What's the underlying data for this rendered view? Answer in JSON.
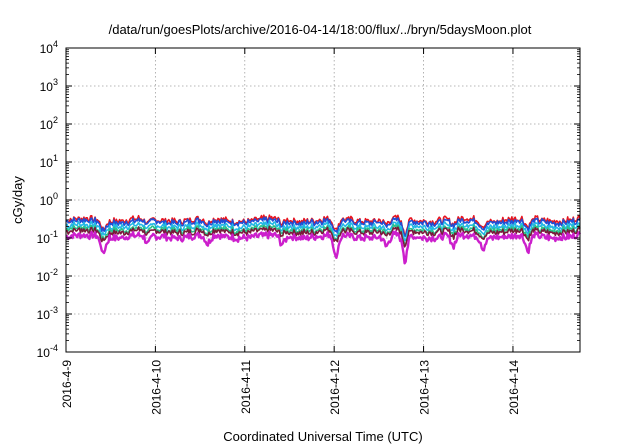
{
  "chart_data": {
    "type": "line",
    "title": "/data/run/goesPlots/archive/2016-04-14/18:00/flux/../bryn/5daysMoon.plot",
    "xlabel": "Coordinated Universal Time (UTC)",
    "ylabel": "cGy/day",
    "yscale": "log",
    "ylim": [
      0.0001,
      10000
    ],
    "xlim": [
      "2016-04-09T00:00",
      "2016-04-14T18:00"
    ],
    "grid": true,
    "x_tick_labels": [
      "2016-4-9",
      "2016-4-10",
      "2016-4-11",
      "2016-4-12",
      "2016-4-13",
      "2016-4-14"
    ],
    "x_ticks": [
      "2016-04-09T00:00",
      "2016-04-10T00:00",
      "2016-04-11T00:00",
      "2016-04-12T00:00",
      "2016-04-13T00:00",
      "2016-04-14T00:00"
    ],
    "y_ticks": [
      {
        "base": "10",
        "exp": "-4",
        "value": 0.0001
      },
      {
        "base": "10",
        "exp": "-3",
        "value": 0.001
      },
      {
        "base": "10",
        "exp": "-2",
        "value": 0.01
      },
      {
        "base": "10",
        "exp": "-1",
        "value": 0.1
      },
      {
        "base": "10",
        "exp": "0",
        "value": 1
      },
      {
        "base": "10",
        "exp": "1",
        "value": 10
      },
      {
        "base": "10",
        "exp": "2",
        "value": 100
      },
      {
        "base": "10",
        "exp": "3",
        "value": 1000
      },
      {
        "base": "10",
        "exp": "4",
        "value": 10000
      }
    ],
    "series": [
      {
        "color": "#e8141e",
        "base": 0.3
      },
      {
        "color": "#1f4fd6",
        "base": 0.27
      },
      {
        "color": "#22b8e6",
        "base": 0.21
      },
      {
        "color": "#29c38a",
        "base": 0.17
      },
      {
        "color": "#7a1a3a",
        "base": 0.15
      },
      {
        "color": "#cc1fcc",
        "base": 0.11
      }
    ],
    "dips": [
      {
        "t": "2016-04-09T10:00",
        "factor": 0.55
      },
      {
        "t": "2016-04-09T22:00",
        "factor": 0.75
      },
      {
        "t": "2016-04-10T14:00",
        "factor": 0.72
      },
      {
        "t": "2016-04-11T10:00",
        "factor": 0.75
      },
      {
        "t": "2016-04-12T00:30",
        "factor": 0.42
      },
      {
        "t": "2016-04-12T14:00",
        "factor": 0.7
      },
      {
        "t": "2016-04-12T19:00",
        "factor": 0.38
      },
      {
        "t": "2016-04-13T08:00",
        "factor": 0.7
      },
      {
        "t": "2016-04-13T16:00",
        "factor": 0.7
      },
      {
        "t": "2016-04-14T04:00",
        "factor": 0.55
      }
    ]
  }
}
